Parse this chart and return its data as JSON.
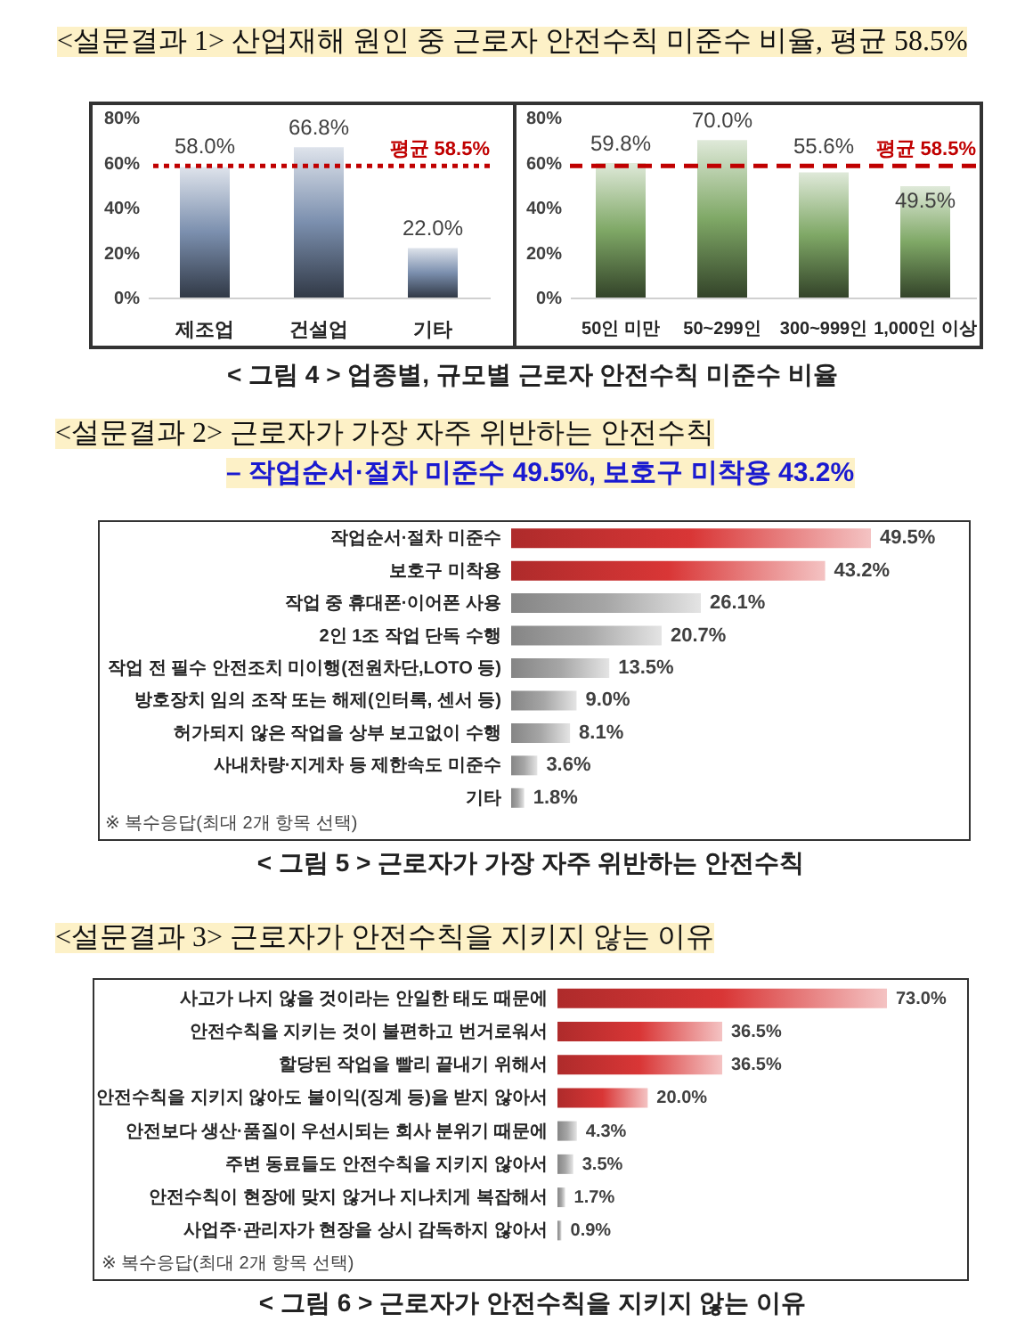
{
  "chart_data": [
    {
      "type": "bar",
      "title": "<설문결과 1> 산업재해 원인 중 근로자 안전수칙 미준수 비율, 평균 58.5%",
      "categories": [
        "제조업",
        "건설업",
        "기타"
      ],
      "values": [
        58.0,
        66.8,
        22.0
      ],
      "color": "#7b8fae",
      "value_labels": [
        "58.0%",
        "66.8%",
        "22.0%"
      ],
      "ylim": [
        0,
        80
      ],
      "yticks": [
        {
          "value": 0,
          "label": "0%"
        },
        {
          "value": 20,
          "label": "20%"
        },
        {
          "value": 40,
          "label": "40%"
        },
        {
          "value": 60,
          "label": "60%"
        },
        {
          "value": 80,
          "label": "80%"
        }
      ],
      "ref_lines": [
        {
          "axis": "y",
          "value": 58.5,
          "label": "평균 58.5%",
          "color": "#c00000",
          "line_style": "dotted"
        }
      ]
    },
    {
      "type": "bar",
      "categories": [
        "50인 미만",
        "50~299인",
        "300~999인",
        "1,000인 이상"
      ],
      "values": [
        59.8,
        70.0,
        55.6,
        49.5
      ],
      "color": "#7fa866",
      "value_labels": [
        "59.8%",
        "70.0%",
        "55.6%",
        "49.5%"
      ],
      "ylim": [
        0,
        80
      ],
      "yticks": [
        {
          "value": 0,
          "label": "0%"
        },
        {
          "value": 20,
          "label": "20%"
        },
        {
          "value": 40,
          "label": "40%"
        },
        {
          "value": 60,
          "label": "60%"
        },
        {
          "value": 80,
          "label": "80%"
        }
      ],
      "ref_lines": [
        {
          "axis": "y",
          "value": 58.5,
          "label": "평균 58.5%",
          "color": "#c00000",
          "line_style": "dashed"
        }
      ],
      "annotations": [
        "< 그림 4 > 업종별, 규모별 근로자 안전수칙 미준수 비율"
      ]
    },
    {
      "type": "bar",
      "orientation": "horizontal",
      "title": "<설문결과 2> 근로자가 가장 자주 위반하는 안전수칙",
      "subtitle": "– 작업순서·절차 미준수 49.5%, 보호구 미착용 43.2%",
      "categories": [
        "작업순서·절차 미준수",
        "보호구 미착용",
        "작업 중 휴대폰·이어폰 사용",
        "2인 1조 작업 단독 수행",
        "작업 전 필수 안전조치 미이행(전원차단,LOTO 등)",
        "방호장치 임의 조작 또는 해제(인터록, 센서 등)",
        "허가되지 않은 작업을 상부 보고없이 수행",
        "사내차량·지게차 등 제한속도 미준수",
        "기타"
      ],
      "values": [
        49.5,
        43.2,
        26.1,
        20.7,
        13.5,
        9.0,
        8.1,
        3.6,
        1.8
      ],
      "colors": [
        "#d93636",
        "#d93636",
        "#a6a6a6",
        "#a6a6a6",
        "#a6a6a6",
        "#a6a6a6",
        "#a6a6a6",
        "#a6a6a6",
        "#a6a6a6"
      ],
      "value_labels": [
        "49.5%",
        "43.2%",
        "26.1%",
        "20.7%",
        "13.5%",
        "9.0%",
        "8.1%",
        "3.6%",
        "1.8%"
      ],
      "tick_labels": "y",
      "annotations": [
        "※ 복수응답(최대 2개 항목 선택)",
        "< 그림 5 > 근로자가 가장 자주 위반하는 안전수칙"
      ]
    },
    {
      "type": "bar",
      "orientation": "horizontal",
      "title": "<설문결과 3> 근로자가 안전수칙을 지키지 않는 이유",
      "categories": [
        "사고가 나지 않을 것이라는 안일한 태도 때문에",
        "안전수칙을 지키는 것이 불편하고 번거로워서",
        "할당된 작업을 빨리 끝내기 위해서",
        "안전수칙을 지키지 않아도 불이익(징계 등)을 받지 않아서",
        "안전보다 생산·품질이 우선시되는 회사 분위기 때문에",
        "주변 동료들도 안전수칙을 지키지 않아서",
        "안전수칙이 현장에 맞지 않거나 지나치게 복잡해서",
        "사업주·관리자가 현장을 상시 감독하지 않아서"
      ],
      "values": [
        73.0,
        36.5,
        36.5,
        20.0,
        4.3,
        3.5,
        1.7,
        0.9
      ],
      "colors": [
        "#d93636",
        "#d93636",
        "#d93636",
        "#d93636",
        "#a6a6a6",
        "#a6a6a6",
        "#a6a6a6",
        "#a6a6a6"
      ],
      "value_labels": [
        "73.0%",
        "36.5%",
        "36.5%",
        "20.0%",
        "4.3%",
        "3.5%",
        "1.7%",
        "0.9%"
      ],
      "tick_labels": "y",
      "annotations": [
        "※ 복수응답(최대 2개 항목 선택)",
        "< 그림 6 > 근로자가 안전수칙을 지키지 않는 이유"
      ]
    }
  ]
}
